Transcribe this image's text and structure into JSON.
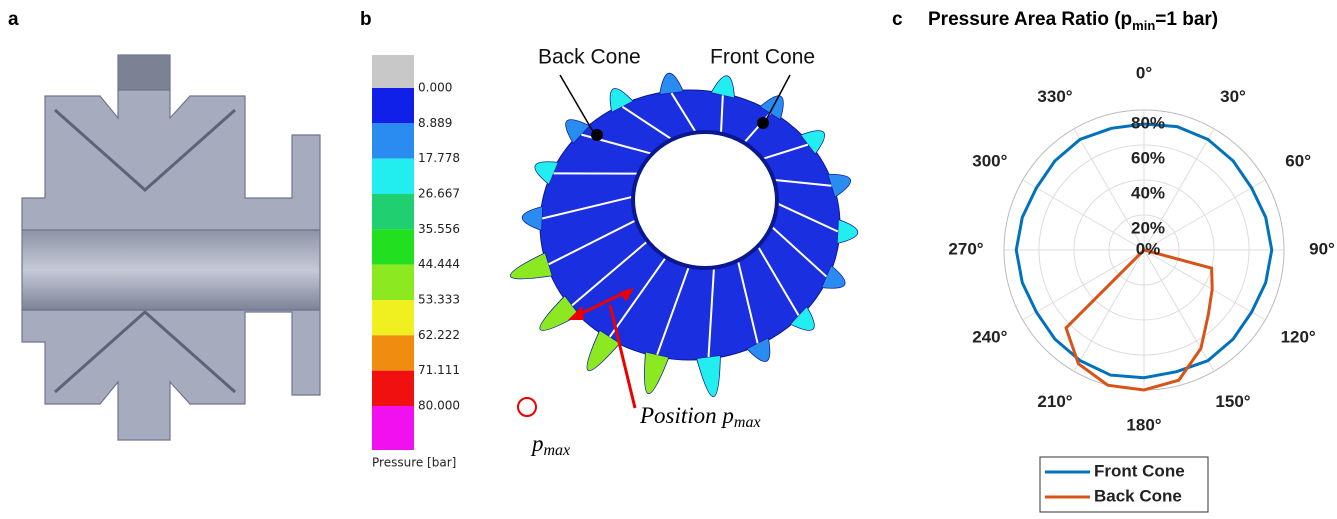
{
  "panel_a": {
    "label": "a"
  },
  "panel_b": {
    "label": "b",
    "annotations": {
      "back_cone": "Back Cone",
      "front_cone": "Front Cone",
      "position": [
        "Position p",
        "max"
      ],
      "pmax": [
        "p",
        "max"
      ]
    }
  },
  "colorbar": {
    "label": "Pressure [bar]",
    "colors": [
      "#c8c8c8",
      "#1020e8",
      "#2a8cf0",
      "#22eef0",
      "#20d070",
      "#22e020",
      "#8ce820",
      "#f0f020",
      "#f08c10",
      "#f01010",
      "#f010f0"
    ],
    "ticks": [
      {
        "value": 0,
        "label": "0.000"
      },
      {
        "value": 8.889,
        "label": "8.889"
      },
      {
        "value": 17.778,
        "label": "17.778"
      },
      {
        "value": 26.667,
        "label": "26.667"
      },
      {
        "value": 35.556,
        "label": "35.556"
      },
      {
        "value": 44.444,
        "label": "44.444"
      },
      {
        "value": 53.333,
        "label": "53.333"
      },
      {
        "value": 62.222,
        "label": "62.222"
      },
      {
        "value": 71.111,
        "label": "71.111"
      },
      {
        "value": 80,
        "label": "80.000"
      }
    ]
  },
  "chart_data": {
    "type": "polar",
    "label": "c",
    "title": [
      "Pressure Area Ratio (p",
      "min",
      "=1 bar)"
    ],
    "x": [
      0,
      15,
      30,
      45,
      60,
      75,
      90,
      105,
      120,
      135,
      150,
      165,
      180,
      195,
      210,
      225,
      240,
      255,
      270,
      285,
      300,
      315,
      330,
      345
    ],
    "series": [
      {
        "name": "Front Cone",
        "color": "#0072bd",
        "values": [
          72,
          73,
          73,
          72,
          71,
          72,
          73,
          72,
          71,
          72,
          73,
          72,
          73,
          74,
          73,
          72,
          71,
          72,
          73,
          72,
          71,
          72,
          73,
          72
        ]
      },
      {
        "name": "Back Cone",
        "color": "#d95319",
        "values": [
          0,
          0,
          0,
          0,
          0,
          0,
          0,
          40,
          45,
          52,
          65,
          77,
          80,
          80,
          75,
          63,
          0,
          0,
          0,
          0,
          0,
          0,
          0,
          0
        ]
      }
    ],
    "ylim": [
      0,
      80
    ],
    "yticks": [
      {
        "value": 0,
        "label": "0%"
      },
      {
        "value": 20,
        "label": "20%"
      },
      {
        "value": 40,
        "label": "40%"
      },
      {
        "value": 60,
        "label": "60%"
      },
      {
        "value": 80,
        "label": "80%"
      }
    ],
    "xticks": [
      {
        "value": 0,
        "label": "0°"
      },
      {
        "value": 30,
        "label": "30°"
      },
      {
        "value": 60,
        "label": "60°"
      },
      {
        "value": 90,
        "label": "90°"
      },
      {
        "value": 120,
        "label": "120°"
      },
      {
        "value": 150,
        "label": "150°"
      },
      {
        "value": 180,
        "label": "180°"
      },
      {
        "value": 210,
        "label": "210°"
      },
      {
        "value": 240,
        "label": "240°"
      },
      {
        "value": 270,
        "label": "270°"
      },
      {
        "value": 300,
        "label": "300°"
      },
      {
        "value": 330,
        "label": "330°"
      }
    ],
    "grid": true
  }
}
